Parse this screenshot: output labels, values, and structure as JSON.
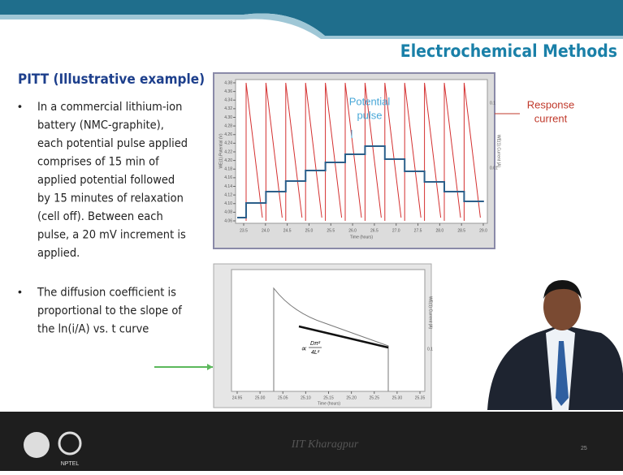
{
  "header": {
    "title": "Electrochemical Methods"
  },
  "slide": {
    "heading": "PITT (Illustrative example)",
    "bullets": [
      [
        "In a commercial lithium-ion",
        "battery        (NMC-graphite),",
        "each potential pulse applied",
        "comprises of 15 min of",
        "applied potential followed",
        "by 15 minutes of relaxation",
        "(cell off).  Between each",
        "pulse, a 20 mV increment is",
        "applied."
      ],
      [
        "The diffusion coefficient is",
        "proportional to the slope of",
        "the ln(i/A) vs. t curve"
      ]
    ]
  },
  "top_plot": {
    "x_label": "Time (hours)",
    "y_label": "WE(1).Potential (V)",
    "y2_label": "WE(1).Current (A)",
    "xticks": [
      {
        "value": 23.5,
        "label": "23.5"
      },
      {
        "value": 24,
        "label": "24.0"
      },
      {
        "value": 24.5,
        "label": "24.5"
      },
      {
        "value": 25,
        "label": "25.0"
      },
      {
        "value": 25.5,
        "label": "25.5"
      },
      {
        "value": 26,
        "label": "26.0"
      },
      {
        "value": 26.5,
        "label": "26.5"
      },
      {
        "value": 27,
        "label": "27.0"
      },
      {
        "value": 27.5,
        "label": "27.5"
      },
      {
        "value": 28,
        "label": "28.0"
      },
      {
        "value": 28.5,
        "label": "28.5"
      },
      {
        "value": 29,
        "label": "29.0"
      }
    ],
    "yticks": [
      {
        "value": 4.06,
        "label": "4.06"
      },
      {
        "value": 4.08,
        "label": "4.08"
      },
      {
        "value": 4.1,
        "label": "4.10"
      },
      {
        "value": 4.12,
        "label": "4.12"
      },
      {
        "value": 4.14,
        "label": "4.14"
      },
      {
        "value": 4.16,
        "label": "4.16"
      },
      {
        "value": 4.18,
        "label": "4.18"
      },
      {
        "value": 4.2,
        "label": "4.20"
      },
      {
        "value": 4.22,
        "label": "4.22"
      },
      {
        "value": 4.24,
        "label": "4.24"
      },
      {
        "value": 4.26,
        "label": "4.26"
      },
      {
        "value": 4.28,
        "label": "4.28"
      },
      {
        "value": 4.3,
        "label": "4.30"
      },
      {
        "value": 4.32,
        "label": "4.32"
      },
      {
        "value": 4.34,
        "label": "4.34"
      },
      {
        "value": 4.36,
        "label": "4.36"
      },
      {
        "value": 4.38,
        "label": "4.38"
      }
    ],
    "y2ticks": [
      "0.1",
      "0.01"
    ],
    "annotations": {
      "potential": [
        "Potential",
        "pulse"
      ],
      "current": [
        "Response",
        "current"
      ]
    }
  },
  "bottom_plot": {
    "x_label": "Time (hours)",
    "y2_label": "WE(1).Current (A)",
    "y2ticks": [
      "0.1"
    ],
    "xticks": [
      {
        "value": 24.95,
        "label": "24.95"
      },
      {
        "value": 25,
        "label": "25.00"
      },
      {
        "value": 25.05,
        "label": "25.05"
      },
      {
        "value": 25.1,
        "label": "25.10"
      },
      {
        "value": 25.15,
        "label": "25.15"
      },
      {
        "value": 25.2,
        "label": "25.20"
      },
      {
        "value": 25.25,
        "label": "25.25"
      },
      {
        "value": 25.3,
        "label": "25.30"
      },
      {
        "value": 25.35,
        "label": "25.35"
      }
    ],
    "formula": {
      "prefix": "∝",
      "numerator": "Dπ²",
      "denominator": "4L²"
    }
  },
  "footer": {
    "center": "IIT Kharagpur",
    "page": "25",
    "logo": "NPTEL"
  }
}
